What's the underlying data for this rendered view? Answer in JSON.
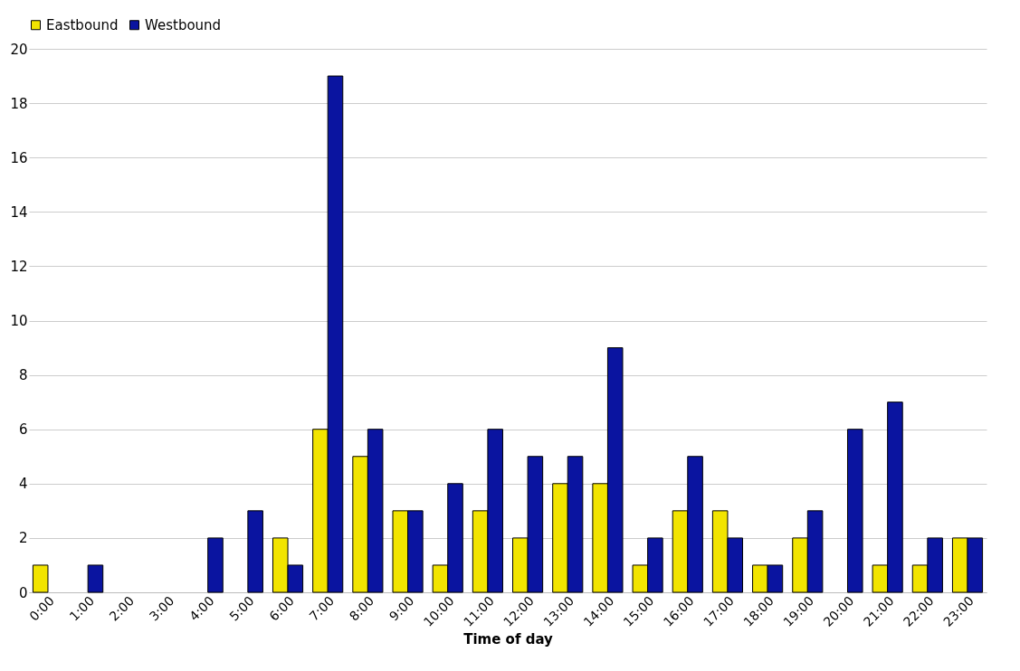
{
  "chart_data": {
    "type": "bar",
    "xlabel": "Time of day",
    "categories": [
      "0:00",
      "1:00",
      "2:00",
      "3:00",
      "4:00",
      "5:00",
      "6:00",
      "7:00",
      "8:00",
      "9:00",
      "10:00",
      "11:00",
      "12:00",
      "13:00",
      "14:00",
      "15:00",
      "16:00",
      "17:00",
      "18:00",
      "19:00",
      "20:00",
      "21:00",
      "22:00",
      "23:00"
    ],
    "series": [
      {
        "name": "Eastbound",
        "color": "#f2e400",
        "values": [
          1,
          0,
          0,
          0,
          0,
          0,
          2,
          6,
          5,
          3,
          1,
          3,
          2,
          4,
          4,
          1,
          3,
          3,
          1,
          2,
          0,
          1,
          1,
          2
        ]
      },
      {
        "name": "Westbound",
        "color": "#0a14a0",
        "values": [
          0,
          1,
          0,
          0,
          2,
          3,
          1,
          19,
          6,
          3,
          4,
          6,
          5,
          5,
          9,
          2,
          5,
          2,
          1,
          3,
          6,
          7,
          2,
          2
        ]
      }
    ],
    "ylim": [
      0,
      20
    ],
    "yticks": [
      0,
      2,
      4,
      6,
      8,
      10,
      12,
      14,
      16,
      18,
      20
    ],
    "grid": "y",
    "legend": "top"
  }
}
